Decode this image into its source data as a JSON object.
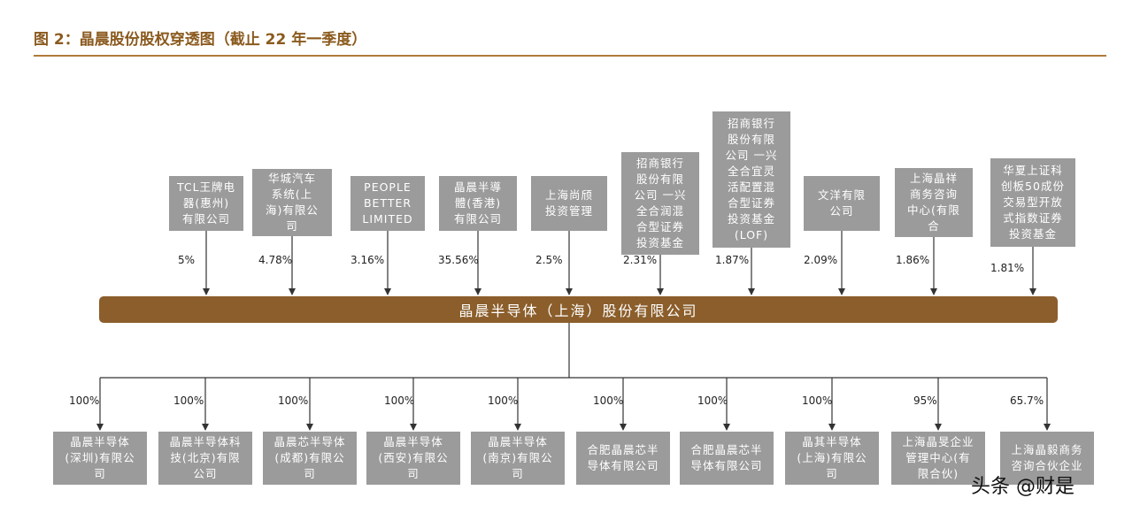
{
  "title": "图 2：晶晨股份股权穿透图（截止 22 年一季度）",
  "company": "晶晨半导体（上海）股份有限公司",
  "shareholders": [
    {
      "name": "TCL王牌电\n器(惠州)\n有限公司",
      "pct": "5%"
    },
    {
      "name": "华城汽车\n系统(上\n海)有限公\n司",
      "pct": "4.78%"
    },
    {
      "name": "PEOPLE\nBETTER\nLIMITED",
      "pct": "3.16%"
    },
    {
      "name": "晶晨半導\n體(香港)\n有限公司",
      "pct": "35.56%"
    },
    {
      "name": "上海尚颀\n投资管理",
      "pct": "2.5%"
    },
    {
      "name": "招商银行\n股份有限\n公司 一兴\n全合润混\n合型证券\n投资基金",
      "pct": "2.31%"
    },
    {
      "name": "招商银行\n股份有限\n公司 一兴\n全合宜灵\n活配置混\n合型证券\n投资基金\n(LOF)",
      "pct": "1.87%"
    },
    {
      "name": "文洋有限\n公司",
      "pct": "2.09%"
    },
    {
      "name": "上海晶祥\n商务咨询\n中心(有限\n合",
      "pct": "1.86%"
    },
    {
      "name": "华夏上证科\n创板50成份\n交易型开放\n式指数证券\n投资基金",
      "pct": "1.81%"
    }
  ],
  "subsidiaries": [
    {
      "name": "晶晨半导体\n(深圳)有限公\n司",
      "pct": "100%"
    },
    {
      "name": "晶晨半导体科\n技(北京)有限\n公司",
      "pct": "100%"
    },
    {
      "name": "晶晨芯半导体\n(成都)有限公\n司",
      "pct": "100%"
    },
    {
      "name": "晶晨半导体\n(西安)有限公\n司",
      "pct": "100%"
    },
    {
      "name": "晶晨半导体\n(南京)有限公\n司",
      "pct": "100%"
    },
    {
      "name": "合肥晶晨芯半\n导体有限公司",
      "pct": "100%"
    },
    {
      "name": "合肥晶晨芯半\n导体有限公司",
      "pct": "100%"
    },
    {
      "name": "晶其半导体\n(上海)有限公\n司",
      "pct": "100%"
    },
    {
      "name": "上海晶旻企业\n管理中心(有\n限合伙)",
      "pct": "95%"
    },
    {
      "name": "上海晶毅商务\n咨询合伙企业",
      "pct": "65.7%"
    }
  ],
  "watermark": "头条 @财是",
  "colors": {
    "bar": "#8B5E2B",
    "box": "#9B9B9B",
    "title": "#8B5A1E",
    "line": "#333333"
  }
}
